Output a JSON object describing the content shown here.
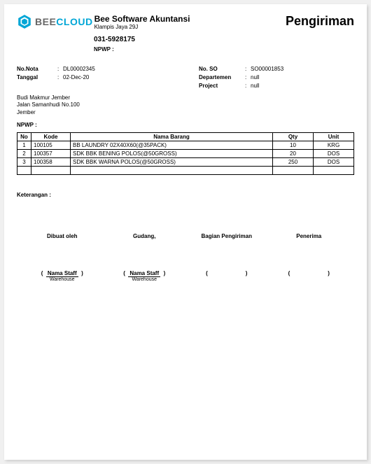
{
  "brand": {
    "part1": "BEE",
    "part2": "CLOUD"
  },
  "company": {
    "name": "Bee Software Akuntansi",
    "address": "Klampis Jaya 29J",
    "phone": "031-5928175",
    "npwp_label": "NPWP :"
  },
  "doc_title": "Pengiriman",
  "left": {
    "nota_label": "No.Nota",
    "nota_value": "DL00002345",
    "tanggal_label": "Tanggal",
    "tanggal_value": "02-Dec-20"
  },
  "right": {
    "so_label": "No. SO",
    "so_value": "SO00001853",
    "dept_label": "Departemen",
    "dept_value": "null",
    "proj_label": "Project",
    "proj_value": "null"
  },
  "customer": {
    "line1": "Budi Makmur Jember",
    "line2": "Jalan Samanhudi No.100",
    "line3": "Jember"
  },
  "npwp_bottom": "NPWP :",
  "table": {
    "headers": {
      "no": "No",
      "kode": "Kode",
      "nama": "Nama Barang",
      "qty": "Qty",
      "unit": "Unit"
    },
    "rows": [
      {
        "no": "1",
        "kode": "100105",
        "nama": "BB LAUNDRY 02X40X60(@35PACK)",
        "qty": "10",
        "unit": "KRG"
      },
      {
        "no": "2",
        "kode": "100357",
        "nama": "SDK BBK BENING POLOS(@50GROSS)",
        "qty": "20",
        "unit": "DOS"
      },
      {
        "no": "3",
        "kode": "100358",
        "nama": "SDK BBK WARNA POLOS(@50GROSS)",
        "qty": "250",
        "unit": "DOS"
      }
    ]
  },
  "keterangan_label": "Keterangan :",
  "signatures": {
    "col1": {
      "title": "Dibuat oleh",
      "name": "Nama Staff",
      "role": "Warehouse"
    },
    "col2": {
      "title": "Gudang,",
      "name": "Nama Staff",
      "role": "Warehouse"
    },
    "col3": {
      "title": "Bagian Pengiriman"
    },
    "col4": {
      "title": "Penerima"
    }
  }
}
